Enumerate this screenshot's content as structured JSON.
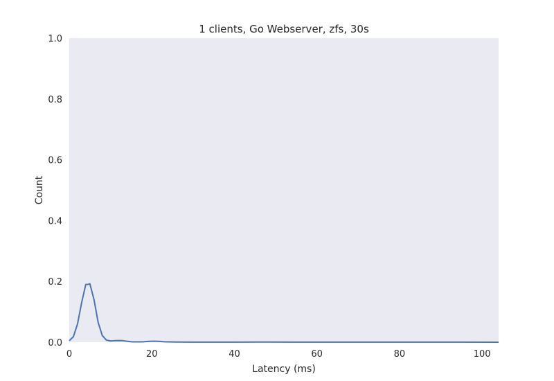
{
  "chart_data": {
    "type": "line",
    "title": "1 clients, Go Webserver, zfs, 30s",
    "xlabel": "Latency (ms)",
    "ylabel": "Count",
    "xlim": [
      0,
      104
    ],
    "ylim": [
      0,
      1.0
    ],
    "x_ticks": [
      0,
      20,
      40,
      60,
      80,
      100
    ],
    "y_ticks": [
      0.0,
      0.2,
      0.4,
      0.6,
      0.8,
      1.0
    ],
    "x_tick_labels": [
      "0",
      "20",
      "40",
      "60",
      "80",
      "100"
    ],
    "y_tick_labels": [
      "0.0",
      "0.2",
      "0.4",
      "0.6",
      "0.8",
      "1.0"
    ],
    "grid": false,
    "colors": {
      "plot_background": "#eaeaf2",
      "line": "#4c72b0",
      "text": "#262626"
    },
    "series": [
      {
        "x": [
          0,
          1,
          2,
          3,
          4,
          4.5,
          5,
          6,
          7,
          8,
          9,
          10,
          11,
          12,
          13,
          14,
          15,
          16,
          17,
          18,
          19,
          20,
          21,
          22,
          23,
          24,
          26,
          30,
          35,
          40,
          47,
          55,
          65,
          75,
          85,
          90,
          95,
          104
        ],
        "y": [
          0.005,
          0.018,
          0.06,
          0.13,
          0.19,
          0.19,
          0.192,
          0.14,
          0.065,
          0.022,
          0.007,
          0.004,
          0.005,
          0.0055,
          0.005,
          0.003,
          0.0015,
          0.001,
          0.001,
          0.0015,
          0.0025,
          0.003,
          0.003,
          0.0025,
          0.0015,
          0.001,
          0.0005,
          0.0003,
          0.0004,
          0.0003,
          0.0006,
          0.0003,
          0.0003,
          0.0002,
          0.0003,
          0.0004,
          0.0002,
          0.0001
        ]
      }
    ]
  }
}
